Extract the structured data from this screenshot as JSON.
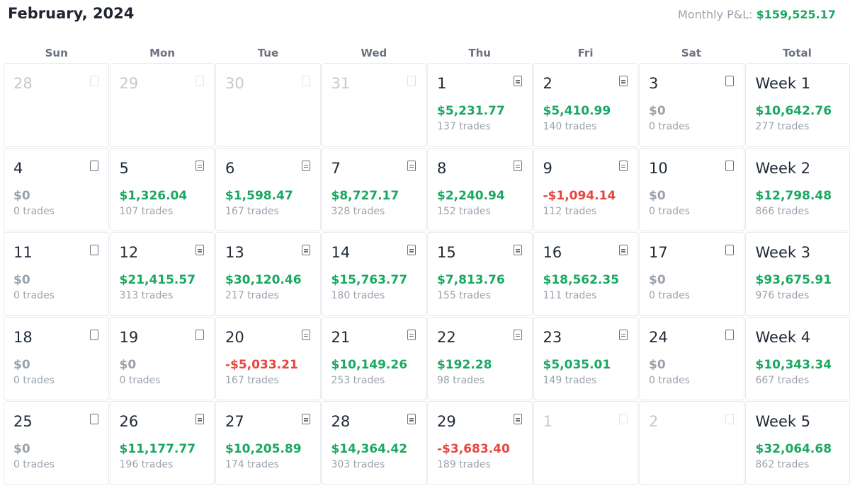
{
  "header": {
    "title": "February, 2024",
    "monthly_label": "Monthly P&L: ",
    "monthly_value": "$159,525.17"
  },
  "weekdays": [
    "Sun",
    "Mon",
    "Tue",
    "Wed",
    "Thu",
    "Fri",
    "Sat",
    "Total"
  ],
  "weeks": [
    {
      "days": [
        {
          "day": "28",
          "muted": true,
          "note": "blank"
        },
        {
          "day": "29",
          "muted": true,
          "note": "blank"
        },
        {
          "day": "30",
          "muted": true,
          "note": "blank"
        },
        {
          "day": "31",
          "muted": true,
          "note": "blank"
        },
        {
          "day": "1",
          "pnl": "$5,231.77",
          "sign": "pos",
          "trades": "137 trades",
          "note": "lined"
        },
        {
          "day": "2",
          "pnl": "$5,410.99",
          "sign": "pos",
          "trades": "140 trades",
          "note": "lined"
        },
        {
          "day": "3",
          "pnl": "$0",
          "sign": "zero",
          "trades": "0 trades",
          "note": "blank"
        }
      ],
      "total": {
        "label": "Week 1",
        "pnl": "$10,642.76",
        "trades": "277 trades"
      }
    },
    {
      "days": [
        {
          "day": "4",
          "pnl": "$0",
          "sign": "zero",
          "trades": "0 trades",
          "note": "blank"
        },
        {
          "day": "5",
          "pnl": "$1,326.04",
          "sign": "pos",
          "trades": "107 trades",
          "note": "lined"
        },
        {
          "day": "6",
          "pnl": "$1,598.47",
          "sign": "pos",
          "trades": "167 trades",
          "note": "lined"
        },
        {
          "day": "7",
          "pnl": "$8,727.17",
          "sign": "pos",
          "trades": "328 trades",
          "note": "lined"
        },
        {
          "day": "8",
          "pnl": "$2,240.94",
          "sign": "pos",
          "trades": "152 trades",
          "note": "lined"
        },
        {
          "day": "9",
          "pnl": "-$1,094.14",
          "sign": "neg",
          "trades": "112 trades",
          "note": "lined"
        },
        {
          "day": "10",
          "pnl": "$0",
          "sign": "zero",
          "trades": "0 trades",
          "note": "blank"
        }
      ],
      "total": {
        "label": "Week 2",
        "pnl": "$12,798.48",
        "trades": "866 trades"
      }
    },
    {
      "days": [
        {
          "day": "11",
          "pnl": "$0",
          "sign": "zero",
          "trades": "0 trades",
          "note": "blank"
        },
        {
          "day": "12",
          "pnl": "$21,415.57",
          "sign": "pos",
          "trades": "313 trades",
          "note": "lined"
        },
        {
          "day": "13",
          "pnl": "$30,120.46",
          "sign": "pos",
          "trades": "217 trades",
          "note": "lined"
        },
        {
          "day": "14",
          "pnl": "$15,763.77",
          "sign": "pos",
          "trades": "180 trades",
          "note": "lined"
        },
        {
          "day": "15",
          "pnl": "$7,813.76",
          "sign": "pos",
          "trades": "155 trades",
          "note": "lined"
        },
        {
          "day": "16",
          "pnl": "$18,562.35",
          "sign": "pos",
          "trades": "111 trades",
          "note": "lined"
        },
        {
          "day": "17",
          "pnl": "$0",
          "sign": "zero",
          "trades": "0 trades",
          "note": "blank"
        }
      ],
      "total": {
        "label": "Week 3",
        "pnl": "$93,675.91",
        "trades": "976 trades"
      }
    },
    {
      "days": [
        {
          "day": "18",
          "pnl": "$0",
          "sign": "zero",
          "trades": "0 trades",
          "note": "blank"
        },
        {
          "day": "19",
          "pnl": "$0",
          "sign": "zero",
          "trades": "0 trades",
          "note": "blank"
        },
        {
          "day": "20",
          "pnl": "-$5,033.21",
          "sign": "neg",
          "trades": "167 trades",
          "note": "lined"
        },
        {
          "day": "21",
          "pnl": "$10,149.26",
          "sign": "pos",
          "trades": "253 trades",
          "note": "lined"
        },
        {
          "day": "22",
          "pnl": "$192.28",
          "sign": "pos",
          "trades": "98 trades",
          "note": "lined"
        },
        {
          "day": "23",
          "pnl": "$5,035.01",
          "sign": "pos",
          "trades": "149 trades",
          "note": "lined"
        },
        {
          "day": "24",
          "pnl": "$0",
          "sign": "zero",
          "trades": "0 trades",
          "note": "blank"
        }
      ],
      "total": {
        "label": "Week 4",
        "pnl": "$10,343.34",
        "trades": "667 trades"
      }
    },
    {
      "days": [
        {
          "day": "25",
          "pnl": "$0",
          "sign": "zero",
          "trades": "0 trades",
          "note": "blank"
        },
        {
          "day": "26",
          "pnl": "$11,177.77",
          "sign": "pos",
          "trades": "196 trades",
          "note": "lined"
        },
        {
          "day": "27",
          "pnl": "$10,205.89",
          "sign": "pos",
          "trades": "174 trades",
          "note": "lined"
        },
        {
          "day": "28",
          "pnl": "$14,364.42",
          "sign": "pos",
          "trades": "303 trades",
          "note": "lined"
        },
        {
          "day": "29",
          "pnl": "-$3,683.40",
          "sign": "neg",
          "trades": "189 trades",
          "note": "lined"
        },
        {
          "day": "1",
          "muted": true,
          "note": "blank"
        },
        {
          "day": "2",
          "muted": true,
          "note": "blank"
        }
      ],
      "total": {
        "label": "Week 5",
        "pnl": "$32,064.68",
        "trades": "862 trades"
      }
    }
  ],
  "colors": {
    "positive": "#1aa861",
    "negative": "#e5473e",
    "neutral": "#9aa3ad"
  },
  "icons": {
    "note_blank": "document-icon",
    "note_lined": "document-text-icon"
  }
}
